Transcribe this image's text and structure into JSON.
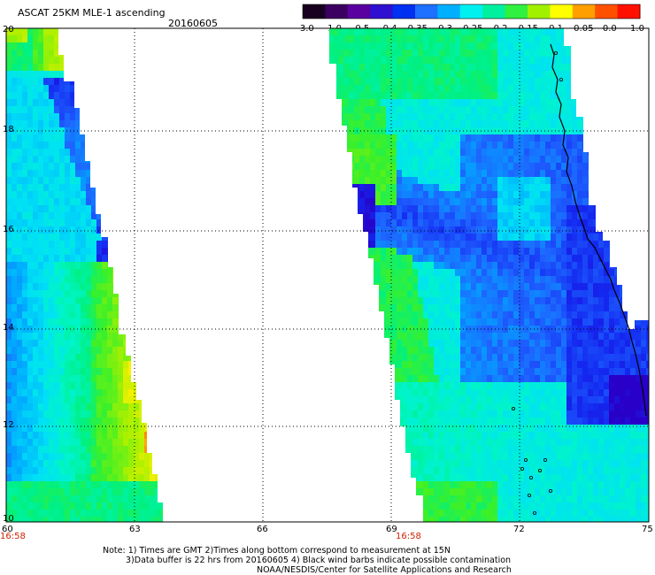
{
  "header": {
    "title": "ASCAT 25KM MLE-1 ascending",
    "date": "20160605"
  },
  "colorbar": {
    "tick_labels": [
      "-3.0",
      "-1.0",
      "-0.5",
      "-0.4",
      "-0.35",
      "-0.3",
      "-0.25",
      "-0.2",
      "-0.15",
      "-0.1",
      "-0.05",
      "0.0",
      "1.0"
    ],
    "colors": [
      "#180020",
      "#3c0060",
      "#5a00a0",
      "#3010d0",
      "#0030f0",
      "#1e70ff",
      "#00b0ff",
      "#00f0f0",
      "#00f0a0",
      "#30f040",
      "#a0f000",
      "#ffff00",
      "#ffa000",
      "#ff5000",
      "#ff1000"
    ]
  },
  "map": {
    "lat_labels": [
      "20",
      "18",
      "16",
      "14",
      "12",
      "10"
    ],
    "lon_labels_left": [
      "60",
      "63",
      "66",
      "69"
    ],
    "lon_labels_right": [
      "69",
      "72",
      "75"
    ],
    "time_labels": [
      "16:58",
      "16:58"
    ]
  },
  "notes": {
    "line1": "Note: 1) Times are GMT 2)Times along bottom correspond to measurement at 15N",
    "line2": "3)Data buffer is 22 hrs from 20160605 4) Black wind barbs indicate possible contamination",
    "line3": "NOAA/NESDIS/Center for Satellite Applications and Research"
  }
}
